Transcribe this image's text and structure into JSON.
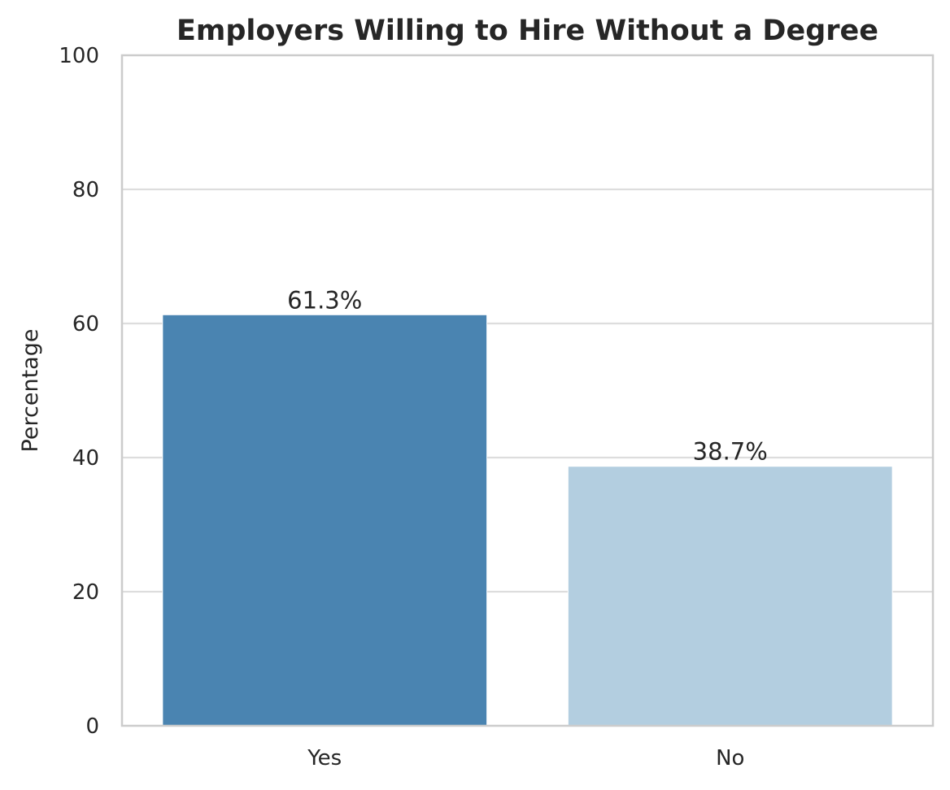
{
  "chart_data": {
    "type": "bar",
    "title": "Employers Willing to Hire Without a Degree",
    "xlabel": "",
    "ylabel": "Percentage",
    "categories": [
      "Yes",
      "No"
    ],
    "values": [
      61.3,
      38.7
    ],
    "value_labels": [
      "61.3%",
      "38.7%"
    ],
    "colors": [
      "#4a84b1",
      "#b3cee0"
    ],
    "ylim": [
      0,
      100
    ],
    "yticks": [
      0,
      20,
      40,
      60,
      80,
      100
    ],
    "grid": true,
    "legend": "none"
  }
}
